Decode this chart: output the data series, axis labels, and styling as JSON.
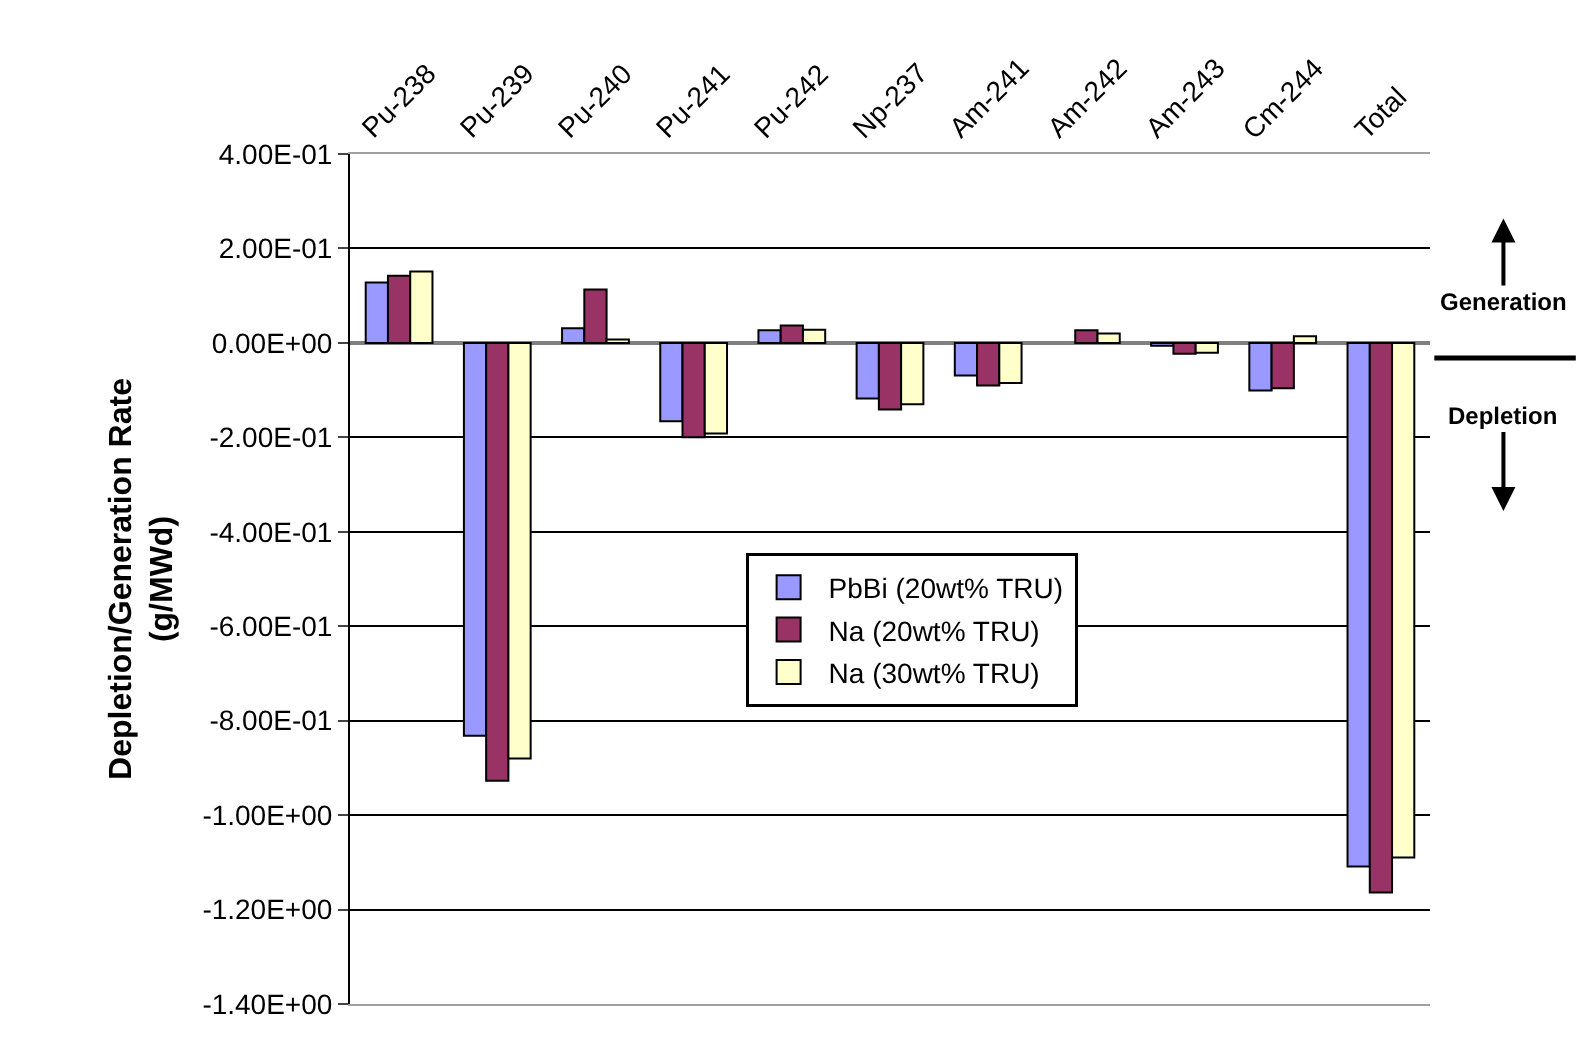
{
  "chart_data": {
    "type": "bar",
    "ylabel": "Depletion/Generation Rate\n(g/MWd)",
    "categories": [
      "Pu-238",
      "Pu-239",
      "Pu-240",
      "Pu-241",
      "Pu-242",
      "Np-237",
      "Am-241",
      "Am-242",
      "Am-243",
      "Cm-244",
      "Total"
    ],
    "series": [
      {
        "name": "PbBi (20wt% TRU)",
        "color": "#9999ff",
        "values": [
          0.128,
          -0.832,
          0.031,
          -0.166,
          0.027,
          -0.118,
          -0.069,
          null,
          -0.006,
          -0.101,
          -1.109
        ]
      },
      {
        "name": "Na (20wt% TRU)",
        "color": "#993366",
        "values": [
          0.142,
          -0.927,
          0.113,
          -0.2,
          0.037,
          -0.141,
          -0.09,
          0.027,
          -0.023,
          -0.096,
          -1.164
        ]
      },
      {
        "name": "Na (30wt% TRU)",
        "color": "#ffffcc",
        "values": [
          0.151,
          -0.88,
          0.007,
          -0.192,
          0.028,
          -0.13,
          -0.085,
          0.02,
          -0.021,
          0.014,
          -1.09
        ]
      }
    ],
    "ylim": [
      -1.4,
      0.4
    ],
    "yticks": [
      {
        "value": 0.4,
        "label": "4.00E-01"
      },
      {
        "value": 0.2,
        "label": "2.00E-01"
      },
      {
        "value": 0,
        "label": "0.00E+00"
      },
      {
        "value": -0.2,
        "label": "-2.00E-01"
      },
      {
        "value": -0.4,
        "label": "-4.00E-01"
      },
      {
        "value": -0.6,
        "label": "-6.00E-01"
      },
      {
        "value": -0.8,
        "label": "-8.00E-01"
      },
      {
        "value": -1.0,
        "label": "-1.00E+00"
      },
      {
        "value": -1.2,
        "label": "-1.20E+00"
      },
      {
        "value": -1.4,
        "label": "-1.40E+00"
      }
    ],
    "grid": "y",
    "legend": "center",
    "annotations": [
      "Generation",
      "Depletion"
    ]
  }
}
